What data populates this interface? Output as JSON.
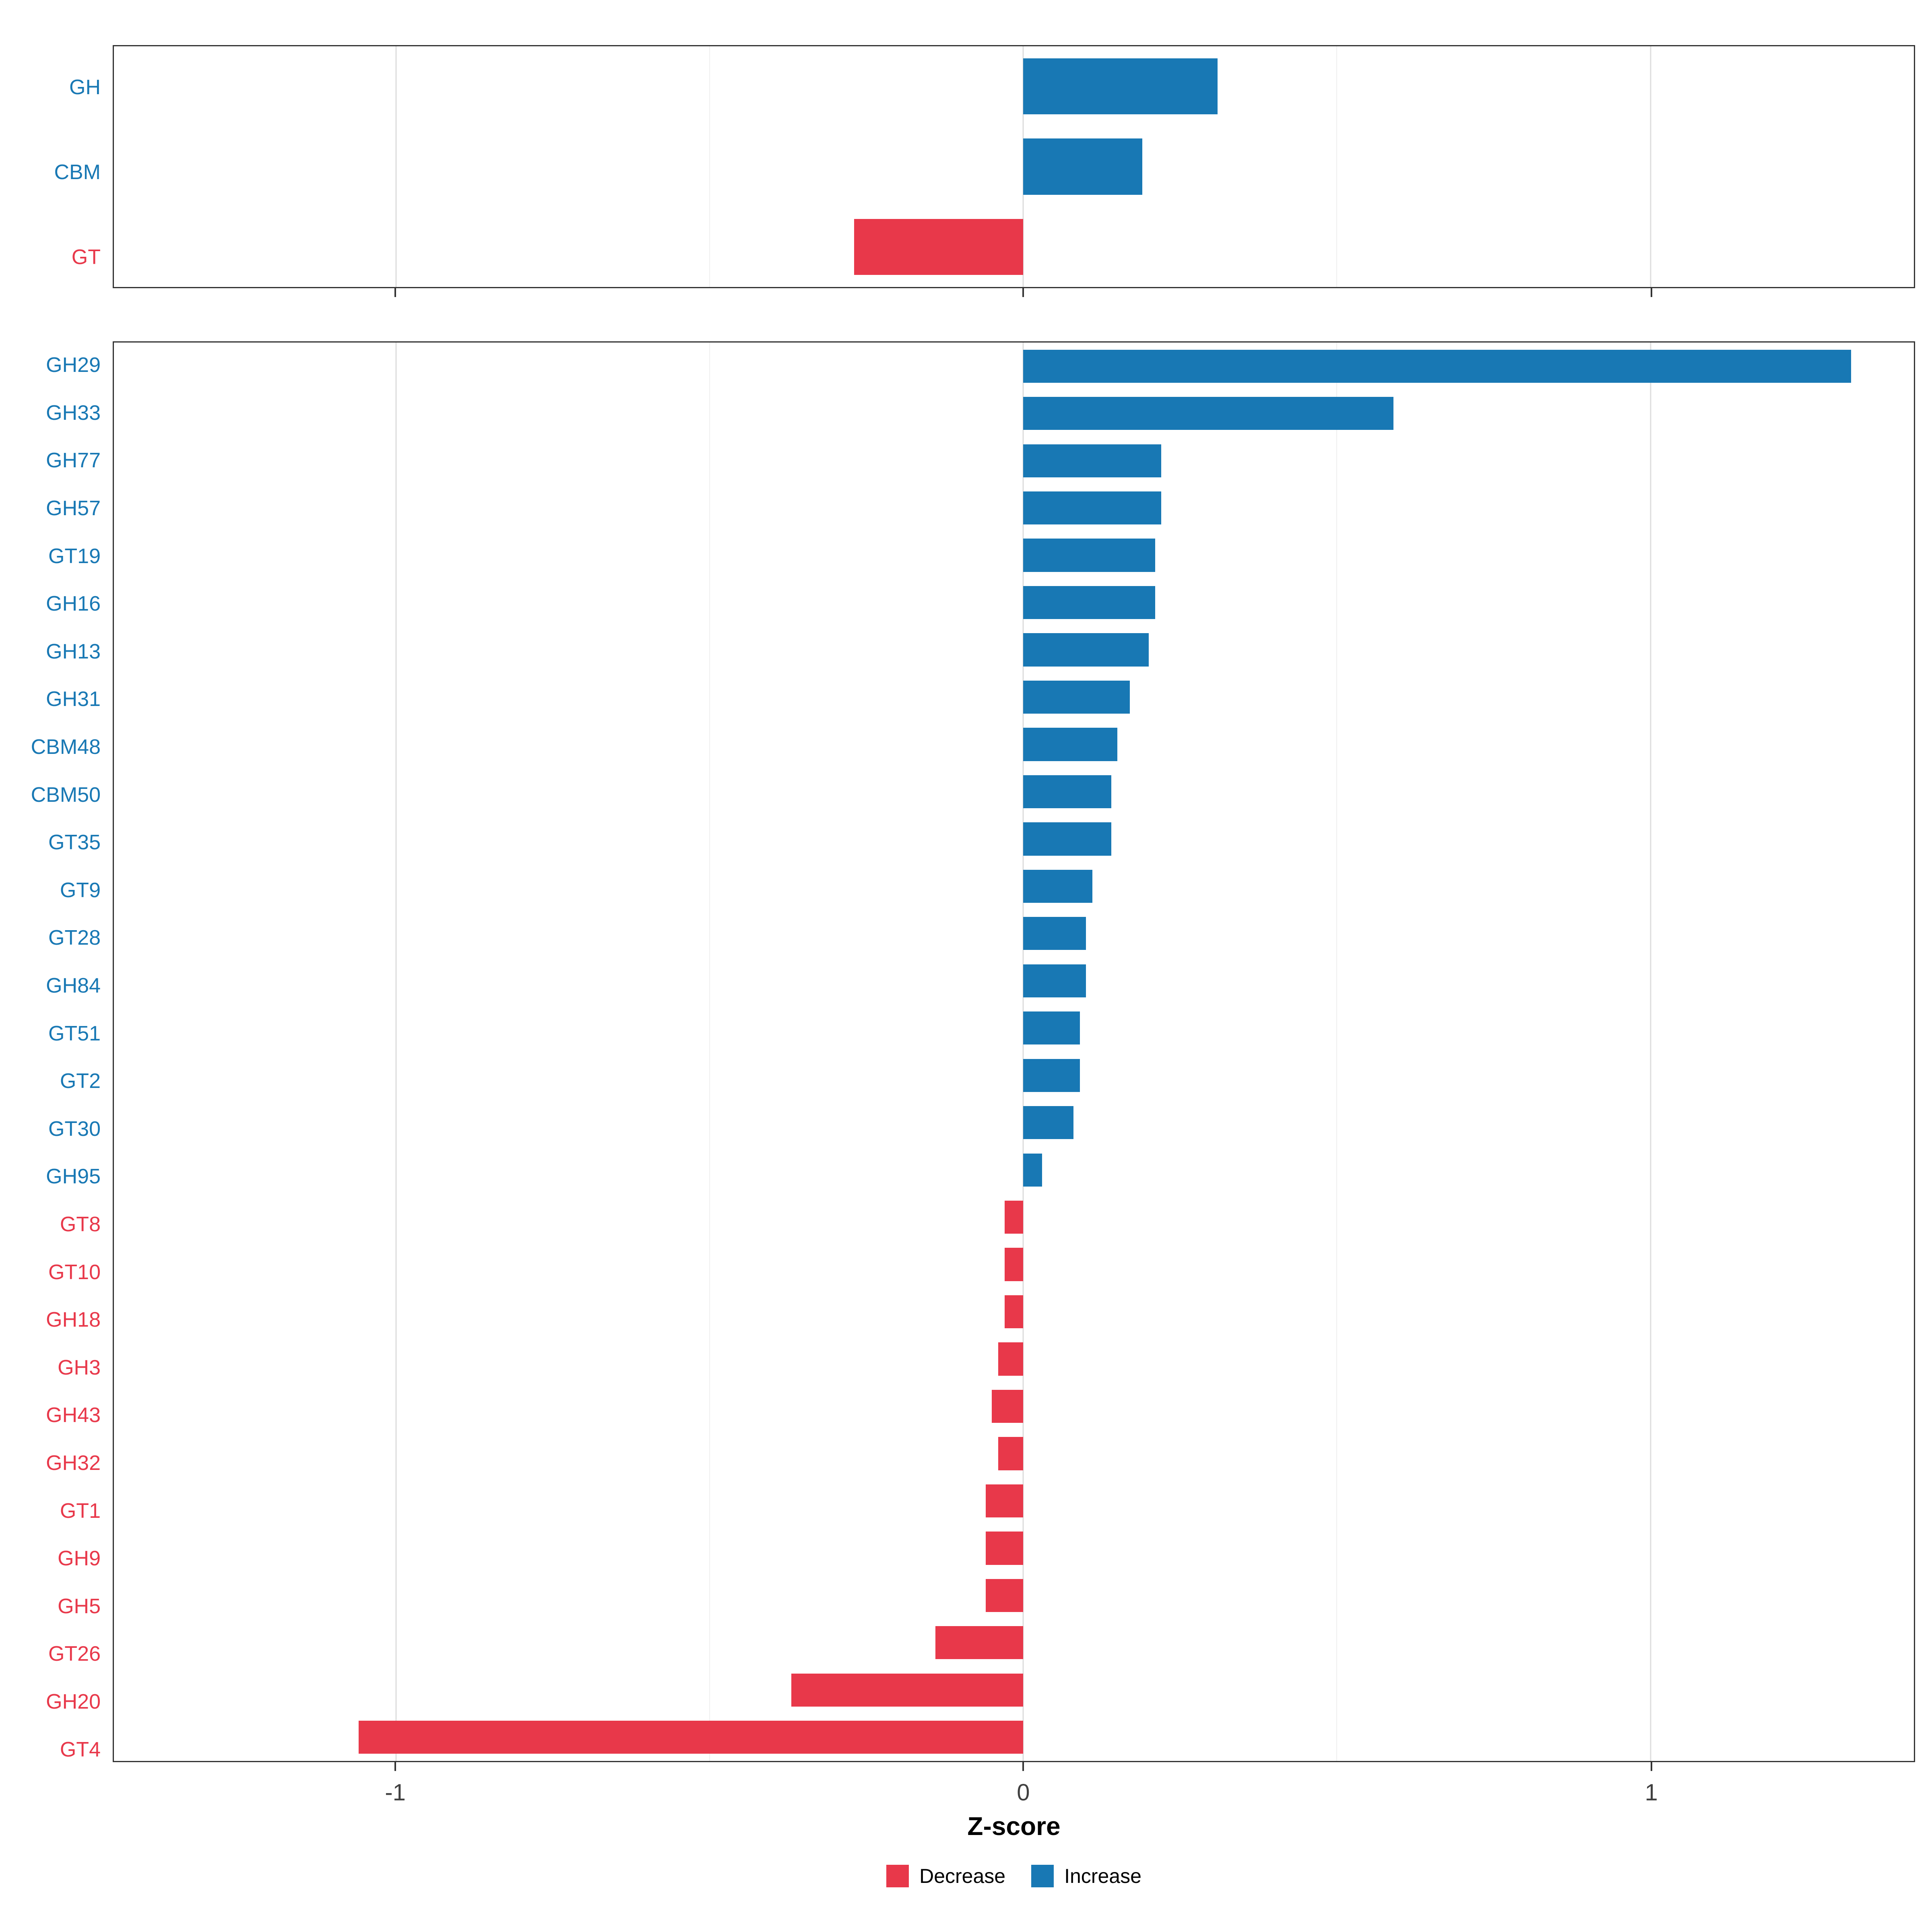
{
  "chart_data": {
    "type": "bar",
    "orientation": "horizontal",
    "title": "",
    "xlabel": "Z-score",
    "ylabel": "",
    "x_domain": [
      -1.45,
      1.42
    ],
    "x_ticks": [
      -1,
      0,
      1
    ],
    "x_tick_labels": [
      "-1",
      "0",
      "1"
    ],
    "x_minor_ticks": [
      -0.5,
      0.5
    ],
    "grid": "major-and-minor-vertical",
    "legend_position": "bottom",
    "colors": {
      "increase": "#1878B4",
      "decrease": "#E8384A",
      "panel_border": "#333333",
      "grid_major": "#DCDCDC",
      "grid_minor": "#EFEFEF"
    },
    "legend": [
      {
        "label": "Decrease",
        "color": "decrease"
      },
      {
        "label": "Increase",
        "color": "increase"
      }
    ],
    "panels": [
      {
        "name": "cazyme-class-summary",
        "categories": [
          "GH",
          "CBM",
          "GT"
        ],
        "values": [
          0.31,
          0.19,
          -0.27
        ]
      },
      {
        "name": "cazyme-families",
        "categories": [
          "GH29",
          "GH33",
          "GH77",
          "GH57",
          "GT19",
          "GH16",
          "GH13",
          "GH31",
          "CBM48",
          "CBM50",
          "GT35",
          "GT9",
          "GT28",
          "GH84",
          "GT51",
          "GT2",
          "GT30",
          "GH95",
          "GT8",
          "GT10",
          "GH18",
          "GH3",
          "GH43",
          "GH32",
          "GT1",
          "GH9",
          "GH5",
          "GT26",
          "GH20",
          "GT4"
        ],
        "values": [
          1.32,
          0.59,
          0.22,
          0.22,
          0.21,
          0.21,
          0.2,
          0.17,
          0.15,
          0.14,
          0.14,
          0.11,
          0.1,
          0.1,
          0.09,
          0.09,
          0.08,
          0.03,
          -0.03,
          -0.03,
          -0.03,
          -0.04,
          -0.05,
          -0.04,
          -0.06,
          -0.06,
          -0.06,
          -0.14,
          -0.37,
          -1.06
        ]
      }
    ]
  }
}
